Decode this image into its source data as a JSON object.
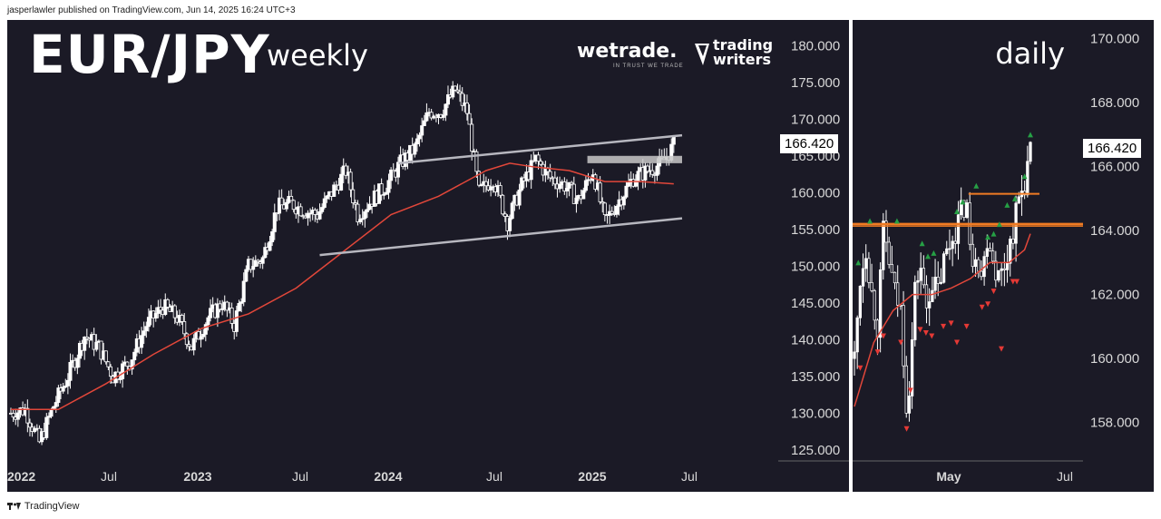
{
  "publisher": "jasperlawler published on TradingView.com, Jun 14, 2025 16:24 UTC+3",
  "footer": "TradingView",
  "weekly": {
    "title": "EUR/JPY",
    "subtitle": "weekly",
    "logo_wetrade": "wetrade.",
    "logo_wetrade_tag": "IN TRUST WE TRADE",
    "logo_tw_line1": "trading",
    "logo_tw_line2": "writers",
    "last_price": "166.420"
  },
  "daily": {
    "title": "daily",
    "last_price": "166.420"
  },
  "colors": {
    "background": "#1b1a26",
    "candle": "#ffffff",
    "ma": "#e2473a",
    "channel": "#b7b7bf",
    "resistance_grey": "#c8c8c8",
    "level_orange": "#f07b23",
    "up_arrow": "#26a045",
    "down_arrow": "#e53935"
  },
  "chart_data": [
    {
      "type": "candlestick",
      "title": "EUR/JPY weekly",
      "x_ticks": [
        "2022",
        "Jul",
        "2023",
        "Jul",
        "2024",
        "Jul",
        "2025",
        "Jul"
      ],
      "y_ticks": [
        "125.000",
        "130.000",
        "135.000",
        "140.000",
        "145.000",
        "150.000",
        "155.000",
        "160.000",
        "165.000",
        "170.000",
        "175.000",
        "180.000"
      ],
      "ylim": [
        123.5,
        182.5
      ],
      "last_price": 166.42,
      "series": [
        {
          "name": "price",
          "style": "candles",
          "close_path": [
            [
              0,
              130.0
            ],
            [
              12,
              130.5
            ],
            [
              24,
              126.0
            ],
            [
              36,
              131.0
            ],
            [
              48,
              135.0
            ],
            [
              62,
              140.5
            ],
            [
              74,
              139.0
            ],
            [
              86,
              135.0
            ],
            [
              100,
              137.0
            ],
            [
              114,
              142.0
            ],
            [
              128,
              144.5
            ],
            [
              140,
              143.0
            ],
            [
              152,
              139.0
            ],
            [
              166,
              143.0
            ],
            [
              178,
              145.0
            ],
            [
              188,
              142.0
            ],
            [
              200,
              150.0
            ],
            [
              212,
              151.0
            ],
            [
              224,
              158.0
            ],
            [
              236,
              158.5
            ],
            [
              248,
              157.5
            ],
            [
              258,
              157.0
            ],
            [
              270,
              160.0
            ],
            [
              282,
              163.0
            ],
            [
              292,
              157.0
            ],
            [
              304,
              159.0
            ],
            [
              316,
              161.0
            ],
            [
              328,
              164.0
            ],
            [
              340,
              166.0
            ],
            [
              352,
              171.0
            ],
            [
              362,
              171.0
            ],
            [
              374,
              174.0
            ],
            [
              384,
              171.0
            ],
            [
              394,
              160.0
            ],
            [
              406,
              162.0
            ],
            [
              418,
              156.0
            ],
            [
              430,
              161.0
            ],
            [
              442,
              164.5
            ],
            [
              454,
              162.0
            ],
            [
              466,
              161.0
            ],
            [
              478,
              159.0
            ],
            [
              490,
              163.0
            ],
            [
              500,
              156.0
            ],
            [
              512,
              159.0
            ],
            [
              524,
              162.0
            ],
            [
              536,
              163.0
            ],
            [
              548,
              164.0
            ],
            [
              558,
              166.4
            ]
          ]
        },
        {
          "name": "moving average",
          "style": "line",
          "points": [
            [
              0,
              130.5
            ],
            [
              40,
              130.5
            ],
            [
              80,
              134.0
            ],
            [
              120,
              138.0
            ],
            [
              160,
              141.5
            ],
            [
              200,
              143.5
            ],
            [
              240,
              147.0
            ],
            [
              280,
              152.0
            ],
            [
              320,
              157.0
            ],
            [
              360,
              159.5
            ],
            [
              400,
              163.0
            ],
            [
              420,
              164.0
            ],
            [
              440,
              163.5
            ],
            [
              470,
              163.0
            ],
            [
              500,
              161.5
            ],
            [
              530,
              161.5
            ],
            [
              558,
              161.2
            ]
          ]
        }
      ],
      "channel_upper": [
        [
          250,
          164.0
        ],
        [
          565,
          167.8
        ]
      ],
      "channel_lower": [
        [
          218,
          151.5
        ],
        [
          565,
          156.5
        ]
      ],
      "resistance_band": [
        [
          470,
          164.0
        ],
        [
          565,
          165.0
        ]
      ]
    },
    {
      "type": "candlestick",
      "title": "EUR/JPY daily",
      "x_ticks": [
        "May",
        "Jul"
      ],
      "y_ticks": [
        "158.000",
        "160.000",
        "162.000",
        "164.000",
        "166.000",
        "168.000",
        "170.000"
      ],
      "ylim": [
        156.8,
        170.3
      ],
      "last_price": 166.42,
      "horizontal_levels": [
        164.2,
        164.25,
        165.15
      ],
      "series": [
        {
          "name": "price",
          "style": "candles",
          "close_path": [
            [
              0,
              160.0
            ],
            [
              6,
              162.5
            ],
            [
              12,
              163.5
            ],
            [
              18,
              162.0
            ],
            [
              24,
              161.0
            ],
            [
              30,
              164.0
            ],
            [
              36,
              163.0
            ],
            [
              42,
              162.0
            ],
            [
              48,
              161.5
            ],
            [
              54,
              158.5
            ],
            [
              58,
              159.5
            ],
            [
              62,
              162.0
            ],
            [
              68,
              163.0
            ],
            [
              74,
              161.5
            ],
            [
              80,
              162.5
            ],
            [
              86,
              162.0
            ],
            [
              92,
              163.0
            ],
            [
              98,
              163.5
            ],
            [
              104,
              164.0
            ],
            [
              110,
              164.5
            ],
            [
              116,
              165.0
            ],
            [
              120,
              163.0
            ],
            [
              126,
              163.5
            ],
            [
              132,
              162.5
            ],
            [
              138,
              164.0
            ],
            [
              144,
              163.0
            ],
            [
              150,
              162.5
            ],
            [
              156,
              163.0
            ],
            [
              160,
              163.5
            ],
            [
              164,
              164.0
            ],
            [
              170,
              165.0
            ],
            [
              176,
              165.5
            ],
            [
              182,
              166.4
            ]
          ]
        },
        {
          "name": "moving average",
          "style": "line",
          "points": [
            [
              0,
              158.5
            ],
            [
              20,
              160.5
            ],
            [
              40,
              161.5
            ],
            [
              60,
              162.0
            ],
            [
              80,
              162.0
            ],
            [
              100,
              162.2
            ],
            [
              120,
              162.5
            ],
            [
              140,
              163.0
            ],
            [
              160,
              163.0
            ],
            [
              176,
              163.4
            ],
            [
              182,
              163.9
            ]
          ]
        }
      ],
      "up_signals": [
        [
          4,
          163.0
        ],
        [
          16,
          164.3
        ],
        [
          44,
          164.3
        ],
        [
          70,
          163.6
        ],
        [
          76,
          163.2
        ],
        [
          82,
          163.3
        ],
        [
          106,
          164.6
        ],
        [
          112,
          164.9
        ],
        [
          126,
          165.4
        ],
        [
          138,
          163.8
        ],
        [
          144,
          163.9
        ],
        [
          150,
          164.2
        ],
        [
          158,
          164.8
        ],
        [
          166,
          165.0
        ],
        [
          176,
          165.7
        ],
        [
          182,
          167.0
        ]
      ],
      "down_signals": [
        [
          6,
          159.7
        ],
        [
          24,
          160.2
        ],
        [
          30,
          160.7
        ],
        [
          48,
          160.5
        ],
        [
          54,
          157.8
        ],
        [
          58,
          159.0
        ],
        [
          68,
          160.9
        ],
        [
          74,
          160.8
        ],
        [
          80,
          160.7
        ],
        [
          92,
          161.0
        ],
        [
          100,
          161.1
        ],
        [
          106,
          160.5
        ],
        [
          116,
          161.0
        ],
        [
          132,
          161.6
        ],
        [
          138,
          161.7
        ],
        [
          144,
          162.1
        ],
        [
          152,
          160.3
        ],
        [
          164,
          162.4
        ],
        [
          168,
          162.4
        ]
      ]
    }
  ]
}
